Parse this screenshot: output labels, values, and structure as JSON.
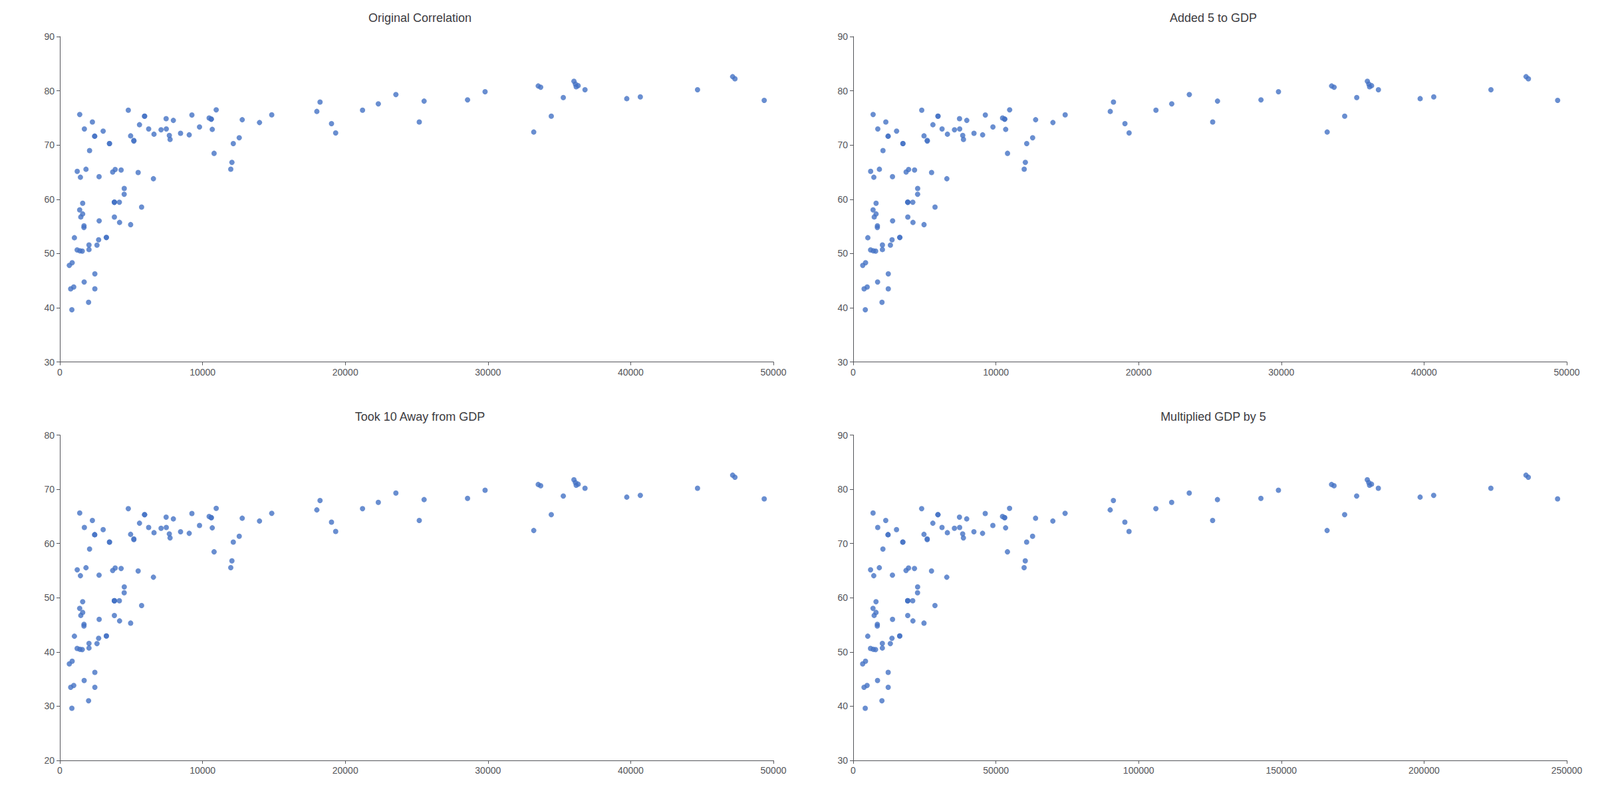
{
  "chart_data": [
    {
      "type": "scatter",
      "title": "Original Correlation",
      "color": "#4472C4",
      "grid": false,
      "xlim": [
        0,
        50000
      ],
      "xticks": [
        0,
        10000,
        20000,
        30000,
        40000,
        50000
      ],
      "ylim": [
        30,
        90
      ],
      "yticks": [
        30,
        40,
        50,
        60,
        70,
        80,
        90
      ],
      "x": [
        974,
        5937,
        6223,
        4797,
        12779,
        34435,
        36126,
        29796,
        1391,
        33693,
        1441,
        3822,
        7446,
        12569,
        9065,
        10680,
        11977,
        25185,
        28569,
        7092,
        2042,
        1388,
        3259,
        36319,
        33207,
        4508,
        1704,
        1213,
        2748,
        18008,
        7458,
        5581,
        39724,
        36797,
        4959,
        5728,
        843,
        2042,
        36180,
        40675,
        2756,
        3820,
        3478,
        5186,
        4172,
        862,
        1688,
        7670,
        2602,
        4513,
        33519,
        36023,
        13990,
        3820,
        663,
        1569,
        3035,
        1217,
        6557,
        9253,
        7723,
        2441,
        12057,
        49357,
        22316,
        2452,
        3702,
        1598,
        44683,
        1020,
        47306,
        10461,
        5487,
        5185,
        1468,
        3876,
        2280,
        10956,
        12154,
        2082,
        4184,
        7954,
        4959,
        3820,
        19328,
        10808,
        1598,
        4293,
        35278,
        19035,
        21209,
        2452,
        1831,
        14847,
        6598,
        1719,
        8458,
        9786,
        10611,
        759,
        2441,
        3478,
        18232,
        3259,
        2013,
        5937,
        47143,
        1691,
        23547,
        25523,
        2718,
        10611,
        1406
      ],
      "values": [
        43.828,
        75.32,
        72.961,
        76.423,
        74.663,
        75.32,
        81.235,
        79.829,
        75.635,
        80.653,
        64.062,
        56.728,
        74.852,
        71.338,
        71.878,
        72.889,
        65.554,
        74.241,
        78.332,
        72.801,
        51.579,
        58.04,
        52.947,
        80.941,
        72.396,
        60.916,
        44.736,
        50.651,
        64.164,
        76.195,
        72.961,
        73.747,
        78.553,
        80.196,
        55.322,
        58.556,
        39.613,
        50.728,
        80.745,
        78.885,
        56.007,
        59.448,
        70.259,
        70.734,
        59.443,
        48.303,
        54.791,
        71.777,
        51.542,
        61.999,
        80.884,
        81.757,
        74.143,
        59.448,
        47.813,
        50.43,
        72.567,
        65.152,
        63.785,
        75.537,
        71.038,
        71.626,
        66.803,
        78.242,
        77.588,
        43.487,
        65.032,
        59.259,
        80.204,
        52.906,
        82.208,
        74.994,
        64.93,
        70.845,
        56.735,
        65.483,
        74.241,
        76.486,
        70.259,
        68.978,
        55.727,
        74.543,
        71.688,
        59.448,
        72.235,
        68.468,
        57.286,
        65.399,
        78.746,
        73.952,
        76.423,
        46.242,
        65.528,
        75.563,
        71.993,
        72.961,
        72.168,
        73.338,
        74.772,
        43.487,
        71.626,
        70.259,
        77.926,
        52.947,
        41.003,
        75.32,
        82.603,
        55.095,
        79.313,
        78.098,
        52.517,
        74.772,
        50.485
      ]
    },
    {
      "type": "scatter",
      "title": "Added 5 to GDP",
      "color": "#4472C4",
      "grid": false,
      "xlim": [
        0,
        50000
      ],
      "xticks": [
        0,
        10000,
        20000,
        30000,
        40000,
        50000
      ],
      "ylim": [
        30,
        90
      ],
      "yticks": [
        30,
        40,
        50,
        60,
        70,
        80,
        90
      ],
      "x": [
        979,
        5942,
        6228,
        4802,
        12784,
        34440,
        36131,
        29801,
        1396,
        33698,
        1446,
        3827,
        7451,
        12574,
        9070,
        10685,
        11982,
        25190,
        28574,
        7097,
        2047,
        1393,
        3264,
        36324,
        33212,
        4513,
        1709,
        1218,
        2753,
        18013,
        7463,
        5586,
        39729,
        36802,
        4964,
        5733,
        848,
        2047,
        36185,
        40680,
        2761,
        3825,
        3483,
        5191,
        4177,
        867,
        1693,
        7675,
        2607,
        4518,
        33524,
        36028,
        13995,
        3825,
        668,
        1574,
        3040,
        1222,
        6562,
        9258,
        7728,
        2446,
        12062,
        49362,
        22321,
        2457,
        3707,
        1603,
        44688,
        1025,
        47311,
        10466,
        5492,
        5190,
        1473,
        3881,
        2285,
        10961,
        12159,
        2087,
        4189,
        7959,
        4964,
        3825,
        19333,
        10813,
        1603,
        4298,
        35283,
        19040,
        21214,
        2457,
        1836,
        14852,
        6603,
        1724,
        8463,
        9791,
        10616,
        764,
        2446,
        3483,
        18237,
        3264,
        2018,
        5942,
        47148,
        1696,
        23552,
        25528,
        2723,
        10616,
        1411
      ],
      "values": [
        43.828,
        75.32,
        72.961,
        76.423,
        74.663,
        75.32,
        81.235,
        79.829,
        75.635,
        80.653,
        64.062,
        56.728,
        74.852,
        71.338,
        71.878,
        72.889,
        65.554,
        74.241,
        78.332,
        72.801,
        51.579,
        58.04,
        52.947,
        80.941,
        72.396,
        60.916,
        44.736,
        50.651,
        64.164,
        76.195,
        72.961,
        73.747,
        78.553,
        80.196,
        55.322,
        58.556,
        39.613,
        50.728,
        80.745,
        78.885,
        56.007,
        59.448,
        70.259,
        70.734,
        59.443,
        48.303,
        54.791,
        71.777,
        51.542,
        61.999,
        80.884,
        81.757,
        74.143,
        59.448,
        47.813,
        50.43,
        72.567,
        65.152,
        63.785,
        75.537,
        71.038,
        71.626,
        66.803,
        78.242,
        77.588,
        43.487,
        65.032,
        59.259,
        80.204,
        52.906,
        82.208,
        74.994,
        64.93,
        70.845,
        56.735,
        65.483,
        74.241,
        76.486,
        70.259,
        68.978,
        55.727,
        74.543,
        71.688,
        59.448,
        72.235,
        68.468,
        57.286,
        65.399,
        78.746,
        73.952,
        76.423,
        46.242,
        65.528,
        75.563,
        71.993,
        72.961,
        72.168,
        73.338,
        74.772,
        43.487,
        71.626,
        70.259,
        77.926,
        52.947,
        41.003,
        75.32,
        82.603,
        55.095,
        79.313,
        78.098,
        52.517,
        74.772,
        50.485
      ]
    },
    {
      "type": "scatter",
      "title": "Took 10 Away from GDP",
      "color": "#4472C4",
      "grid": false,
      "xlim": [
        0,
        50000
      ],
      "xticks": [
        0,
        10000,
        20000,
        30000,
        40000,
        50000
      ],
      "ylim": [
        20,
        80
      ],
      "yticks": [
        20,
        30,
        40,
        50,
        60,
        70,
        80
      ],
      "x": [
        974,
        5937,
        6223,
        4797,
        12779,
        34435,
        36126,
        29796,
        1391,
        33693,
        1441,
        3822,
        7446,
        12569,
        9065,
        10680,
        11977,
        25185,
        28569,
        7092,
        2042,
        1388,
        3259,
        36319,
        33207,
        4508,
        1704,
        1213,
        2748,
        18008,
        7458,
        5581,
        39724,
        36797,
        4959,
        5728,
        843,
        2042,
        36180,
        40675,
        2756,
        3820,
        3478,
        5186,
        4172,
        862,
        1688,
        7670,
        2602,
        4513,
        33519,
        36023,
        13990,
        3820,
        663,
        1569,
        3035,
        1217,
        6557,
        9253,
        7723,
        2441,
        12057,
        49357,
        22316,
        2452,
        3702,
        1598,
        44683,
        1020,
        47306,
        10461,
        5487,
        5185,
        1468,
        3876,
        2280,
        10956,
        12154,
        2082,
        4184,
        7954,
        4959,
        3820,
        19328,
        10808,
        1598,
        4293,
        35278,
        19035,
        21209,
        2452,
        1831,
        14847,
        6598,
        1719,
        8458,
        9786,
        10611,
        759,
        2441,
        3478,
        18232,
        3259,
        2013,
        5937,
        47143,
        1691,
        23547,
        25523,
        2718,
        10611,
        1406
      ],
      "values": [
        33.828,
        65.32,
        62.961,
        66.423,
        64.663,
        65.32,
        71.235,
        69.829,
        65.635,
        70.653,
        54.062,
        46.728,
        64.852,
        61.338,
        61.878,
        62.889,
        55.554,
        64.241,
        68.332,
        62.801,
        41.579,
        48.04,
        42.947,
        70.941,
        62.396,
        50.916,
        34.736,
        40.651,
        54.164,
        66.195,
        62.961,
        63.747,
        68.553,
        70.196,
        45.322,
        48.556,
        29.613,
        40.728,
        70.745,
        68.885,
        46.007,
        49.448,
        60.259,
        60.734,
        49.443,
        38.303,
        44.791,
        61.777,
        41.542,
        51.999,
        70.884,
        71.757,
        64.143,
        49.448,
        37.813,
        40.43,
        62.567,
        55.152,
        53.785,
        65.537,
        61.038,
        61.626,
        56.803,
        68.242,
        67.588,
        33.487,
        55.032,
        49.259,
        70.204,
        42.906,
        72.208,
        64.994,
        54.93,
        60.845,
        46.735,
        55.483,
        64.241,
        66.486,
        60.259,
        58.978,
        45.727,
        64.543,
        61.688,
        49.448,
        62.235,
        58.468,
        47.286,
        55.399,
        68.746,
        63.952,
        66.423,
        36.242,
        55.528,
        65.563,
        61.993,
        62.961,
        62.168,
        63.338,
        64.772,
        33.487,
        61.626,
        60.259,
        67.926,
        42.947,
        31.003,
        65.32,
        72.603,
        45.095,
        69.313,
        68.098,
        42.517,
        64.772,
        40.485
      ]
    },
    {
      "type": "scatter",
      "title": "Multiplied GDP by 5",
      "color": "#4472C4",
      "grid": false,
      "xlim": [
        0,
        250000
      ],
      "xticks": [
        0,
        50000,
        100000,
        150000,
        200000,
        250000
      ],
      "ylim": [
        30,
        90
      ],
      "yticks": [
        30,
        40,
        50,
        60,
        70,
        80,
        90
      ],
      "x": [
        4870,
        29685,
        31115,
        23985,
        63895,
        172175,
        180630,
        148980,
        6955,
        168465,
        7205,
        19110,
        37230,
        62845,
        45325,
        53400,
        59885,
        125925,
        142845,
        35460,
        10210,
        6940,
        16295,
        181595,
        166035,
        22540,
        8520,
        6065,
        13740,
        90040,
        37290,
        27905,
        198620,
        183985,
        24795,
        28640,
        4215,
        10210,
        180900,
        203375,
        13780,
        19100,
        17390,
        25930,
        20860,
        4310,
        8440,
        38350,
        13010,
        22565,
        167595,
        180115,
        69950,
        19100,
        3315,
        7845,
        15175,
        6085,
        32785,
        46265,
        38615,
        12205,
        60285,
        246785,
        111580,
        12260,
        18510,
        7990,
        223415,
        5100,
        236530,
        52305,
        27435,
        25925,
        7340,
        19380,
        11400,
        54780,
        60770,
        10410,
        20920,
        39770,
        24795,
        19100,
        96640,
        54040,
        7990,
        21465,
        176390,
        95175,
        106045,
        12260,
        9155,
        74235,
        32990,
        8595,
        42290,
        48930,
        53055,
        3795,
        12205,
        17390,
        91160,
        16295,
        10065,
        29685,
        235715,
        8455,
        117735,
        127615,
        13590,
        53055,
        7030
      ],
      "values": [
        43.828,
        75.32,
        72.961,
        76.423,
        74.663,
        75.32,
        81.235,
        79.829,
        75.635,
        80.653,
        64.062,
        56.728,
        74.852,
        71.338,
        71.878,
        72.889,
        65.554,
        74.241,
        78.332,
        72.801,
        51.579,
        58.04,
        52.947,
        80.941,
        72.396,
        60.916,
        44.736,
        50.651,
        64.164,
        76.195,
        72.961,
        73.747,
        78.553,
        80.196,
        55.322,
        58.556,
        39.613,
        50.728,
        80.745,
        78.885,
        56.007,
        59.448,
        70.259,
        70.734,
        59.443,
        48.303,
        54.791,
        71.777,
        51.542,
        61.999,
        80.884,
        81.757,
        74.143,
        59.448,
        47.813,
        50.43,
        72.567,
        65.152,
        63.785,
        75.537,
        71.038,
        71.626,
        66.803,
        78.242,
        77.588,
        43.487,
        65.032,
        59.259,
        80.204,
        52.906,
        82.208,
        74.994,
        64.93,
        70.845,
        56.735,
        65.483,
        74.241,
        76.486,
        70.259,
        68.978,
        55.727,
        74.543,
        71.688,
        59.448,
        72.235,
        68.468,
        57.286,
        65.399,
        78.746,
        73.952,
        76.423,
        46.242,
        65.528,
        75.563,
        71.993,
        72.961,
        72.168,
        73.338,
        74.772,
        43.487,
        71.626,
        70.259,
        77.926,
        52.947,
        41.003,
        75.32,
        82.603,
        55.095,
        79.313,
        78.098,
        52.517,
        74.772,
        50.485
      ]
    }
  ]
}
